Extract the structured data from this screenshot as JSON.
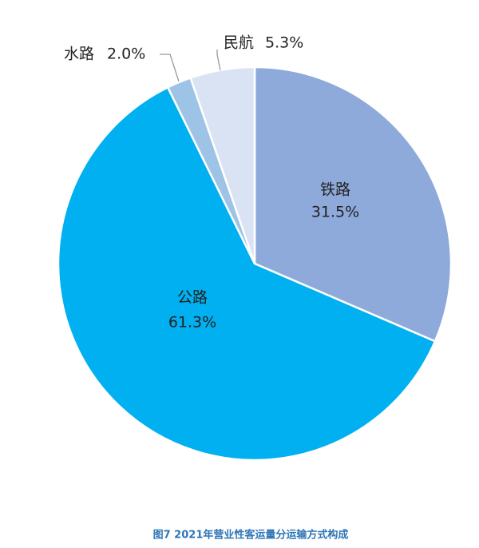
{
  "chart_data": {
    "type": "pie",
    "title": "图7 2021年营业性客运量分运输方式构成",
    "categories": [
      "铁路",
      "公路",
      "水路",
      "民航"
    ],
    "values": [
      31.5,
      61.3,
      2.0,
      5.3
    ],
    "value_labels": [
      "31.5%",
      "61.3%",
      "2.0%",
      "5.3%"
    ],
    "colors": [
      "#8eaadb",
      "#00b0f0",
      "#9dc3e6",
      "#dae3f3"
    ]
  }
}
